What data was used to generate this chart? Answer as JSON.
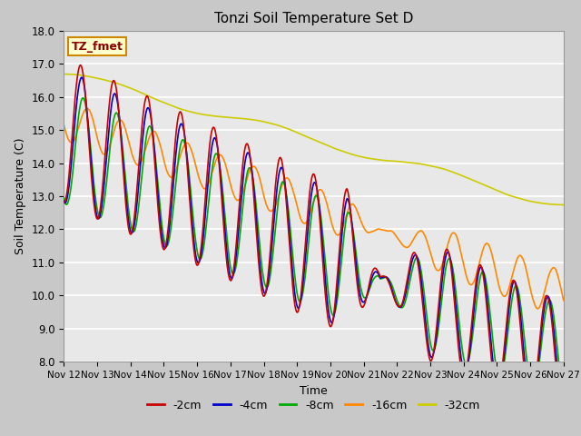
{
  "title": "Tonzi Soil Temperature Set D",
  "xlabel": "Time",
  "ylabel": "Soil Temperature (C)",
  "ylim": [
    8.0,
    18.0
  ],
  "yticks": [
    8.0,
    9.0,
    10.0,
    11.0,
    12.0,
    13.0,
    14.0,
    15.0,
    16.0,
    17.0,
    18.0
  ],
  "xtick_labels": [
    "Nov 12",
    "Nov 13",
    "Nov 14",
    "Nov 15",
    "Nov 16",
    "Nov 17",
    "Nov 18",
    "Nov 19",
    "Nov 20",
    "Nov 21",
    "Nov 22",
    "Nov 23",
    "Nov 24",
    "Nov 25",
    "Nov 26",
    "Nov 27"
  ],
  "legend_labels": [
    "-2cm",
    "-4cm",
    "-8cm",
    "-16cm",
    "-32cm"
  ],
  "colors": [
    "#cc0000",
    "#0000cc",
    "#00aa00",
    "#ff8800",
    "#cccc00"
  ],
  "annotation_text": "TZ_fmet",
  "anno_facecolor": "#ffffcc",
  "anno_edgecolor": "#cc8800",
  "fig_bg": "#c8c8c8",
  "ax_bg": "#e8e8e8",
  "grid_color": "#ffffff",
  "line_width": 1.2,
  "n_points": 1440
}
